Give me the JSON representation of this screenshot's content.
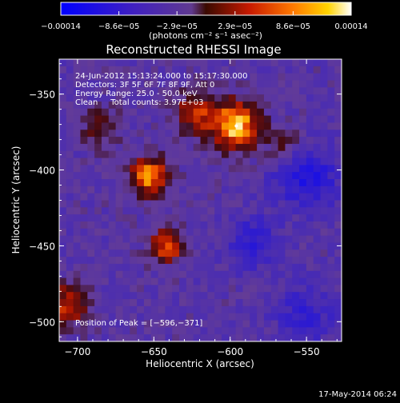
{
  "chart_data": {
    "type": "heatmap",
    "title": "Reconstructed RHESSI Image",
    "xlabel": "Heliocentric X (arcsec)",
    "ylabel": "Heliocentric Y (arcsec)",
    "xlim": [
      -712,
      -527
    ],
    "ylim": [
      -513,
      -327
    ],
    "x_ticks": [
      -700,
      -650,
      -600,
      -550
    ],
    "x_tick_labels": [
      "−700",
      "−650",
      "−600",
      "−550"
    ],
    "y_ticks": [
      -350,
      -400,
      -450,
      -500
    ],
    "y_tick_labels": [
      "−350",
      "−400",
      "−450",
      "−500"
    ],
    "colorbar": {
      "range": [
        -0.00014,
        0.00014
      ],
      "tick_labels": [
        "−0.00014",
        "−8.6e−05",
        "−2.9e−05",
        "2.9e−05",
        "8.6e−05",
        "0.00014"
      ],
      "units": "(photons cm⁻² s⁻¹ asec⁻²)"
    },
    "annotations": [
      "24-Jun-2012 15:13:24.000 to 15:17:30.000",
      "Detectors: 3F 5F 6F 7F 8F 9F, Att 0",
      "Energy Range: 25.0 - 50.0 keV",
      "Clean     Total counts: 3.97E+03"
    ],
    "peak_label": "Position of Peak = [−596,−371]",
    "peak": {
      "x": -596,
      "y": -371
    },
    "sources": [
      {
        "x": -596,
        "y": -371,
        "sigma": 11,
        "amp": 1.0
      },
      {
        "x": -653,
        "y": -404,
        "sigma": 9,
        "amp": 0.85
      },
      {
        "x": -641,
        "y": -450,
        "sigma": 8,
        "amp": 0.7
      },
      {
        "x": -706,
        "y": -488,
        "sigma": 10,
        "amp": 0.6
      },
      {
        "x": -622,
        "y": -362,
        "sigma": 10,
        "amp": 0.55
      },
      {
        "x": -684,
        "y": -373,
        "sigma": 9,
        "amp": 0.35
      },
      {
        "x": -563,
        "y": -385,
        "sigma": 8,
        "amp": 0.3
      }
    ],
    "negative_sources": [
      {
        "x": -550,
        "y": -405,
        "sigma": 14,
        "amp": 0.55
      },
      {
        "x": -585,
        "y": -448,
        "sigma": 12,
        "amp": 0.4
      },
      {
        "x": -550,
        "y": -495,
        "sigma": 14,
        "amp": 0.35
      }
    ],
    "grid": false
  },
  "footer": {
    "timestamp": "17-May-2014 06:24"
  }
}
